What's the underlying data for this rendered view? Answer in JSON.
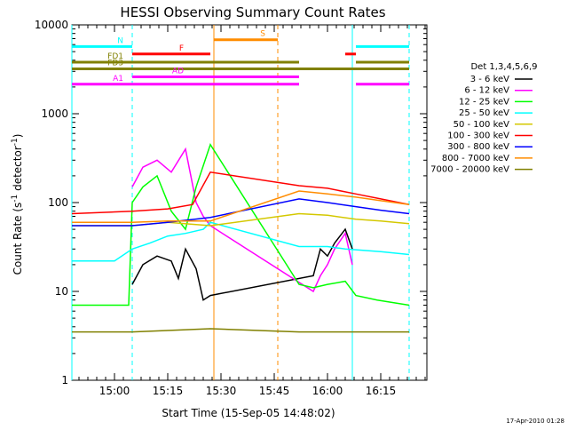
{
  "chart_data": {
    "type": "line",
    "title": "HESSI Observing Summary Count Rates",
    "xlabel": "Start Time (15-Sep-05 14:48:02)",
    "ylabel": "Count Rate (s",
    "ylabel_sup": "-1",
    "ylabel_tail": " detector",
    "ylabel_sup2": "-1",
    "ylabel_close": ")",
    "yscale": "log",
    "xlim": [
      "14:48",
      "16:28"
    ],
    "ylim": [
      1,
      10000
    ],
    "x_ticks": [
      "15:00",
      "15:15",
      "15:30",
      "15:45",
      "16:00",
      "16:15"
    ],
    "y_ticks": [
      "1",
      "10",
      "100",
      "1000",
      "10000"
    ],
    "grid": false,
    "legend_position": "right",
    "legend_title": "Det 1,3,4,5,6,9",
    "timestamp": "17-Apr-2010 01:28",
    "series": [
      {
        "name": "3 - 6 keV",
        "color": "#000000",
        "x": [
          "15:05",
          "15:08",
          "15:12",
          "15:16",
          "15:18",
          "15:20",
          "15:23",
          "15:25",
          "15:27",
          "15:56",
          "15:58",
          "16:00",
          "16:02",
          "16:05",
          "16:07"
        ],
        "y": [
          12,
          20,
          25,
          22,
          14,
          30,
          18,
          8,
          9,
          15,
          30,
          25,
          35,
          50,
          30
        ]
      },
      {
        "name": "6 - 12 keV",
        "color": "#ff00ff",
        "x": [
          "15:05",
          "15:08",
          "15:12",
          "15:16",
          "15:20",
          "15:23",
          "15:25",
          "15:27",
          "15:56",
          "15:58",
          "16:00",
          "16:02",
          "16:05",
          "16:07"
        ],
        "y": [
          150,
          250,
          300,
          220,
          400,
          100,
          70,
          55,
          10,
          15,
          20,
          30,
          45,
          20
        ]
      },
      {
        "name": "12 - 25 keV",
        "color": "#00ff00",
        "x": [
          "14:48",
          "15:04",
          "15:05",
          "15:08",
          "15:12",
          "15:16",
          "15:20",
          "15:23",
          "15:27",
          "15:52",
          "15:56",
          "16:00",
          "16:05",
          "16:08",
          "16:14",
          "16:23"
        ],
        "y": [
          7,
          7,
          100,
          150,
          200,
          80,
          50,
          150,
          450,
          12,
          11,
          12,
          13,
          9,
          8,
          7
        ]
      },
      {
        "name": "25 - 50 keV",
        "color": "#00ffff",
        "x": [
          "14:48",
          "15:00",
          "15:05",
          "15:10",
          "15:15",
          "15:20",
          "15:25",
          "15:27",
          "15:52",
          "16:00",
          "16:05",
          "16:15",
          "16:23"
        ],
        "y": [
          22,
          22,
          30,
          35,
          42,
          45,
          50,
          60,
          32,
          32,
          30,
          28,
          26
        ]
      },
      {
        "name": "50 - 100 keV",
        "color": "#d4c800",
        "x": [
          "14:48",
          "15:05",
          "15:15",
          "15:27",
          "15:52",
          "16:00",
          "16:08",
          "16:15",
          "16:23"
        ],
        "y": [
          55,
          55,
          60,
          55,
          75,
          72,
          65,
          62,
          58
        ]
      },
      {
        "name": "100 - 300 keV",
        "color": "#ff0000",
        "x": [
          "14:48",
          "15:05",
          "15:15",
          "15:22",
          "15:27",
          "15:52",
          "16:00",
          "16:08",
          "16:15",
          "16:23"
        ],
        "y": [
          75,
          80,
          85,
          95,
          220,
          155,
          145,
          125,
          110,
          95
        ]
      },
      {
        "name": "300 - 800 keV",
        "color": "#0000ff",
        "x": [
          "14:48",
          "15:05",
          "15:15",
          "15:27",
          "15:52",
          "16:00",
          "16:08",
          "16:15",
          "16:23"
        ],
        "y": [
          55,
          55,
          60,
          68,
          110,
          100,
          90,
          82,
          75
        ]
      },
      {
        "name": "800 - 7000 keV",
        "color": "#ff8c00",
        "x": [
          "14:48",
          "15:05",
          "15:15",
          "15:27",
          "15:52",
          "16:00",
          "16:08",
          "16:15",
          "16:23"
        ],
        "y": [
          60,
          60,
          62,
          62,
          135,
          125,
          115,
          105,
          95
        ]
      },
      {
        "name": "7000 - 20000 keV",
        "color": "#808000",
        "x": [
          "14:48",
          "15:05",
          "15:27",
          "15:52",
          "16:08",
          "16:23"
        ],
        "y": [
          3.5,
          3.5,
          3.8,
          3.5,
          3.5,
          3.5
        ]
      }
    ],
    "state_bars": [
      {
        "label": "N",
        "color": "#00ffff",
        "segments": [
          [
            "14:48",
            "15:05"
          ],
          [
            "16:08",
            "16:23"
          ]
        ],
        "level": 5700
      },
      {
        "label": "S",
        "color": "#ff8c00",
        "segments": [
          [
            "15:28",
            "15:46"
          ]
        ],
        "level": 6800
      },
      {
        "label": "F",
        "color": "#ff0000",
        "segments": [
          [
            "15:05",
            "15:27"
          ],
          [
            "16:05",
            "16:08"
          ]
        ],
        "level": 4700
      },
      {
        "label": "FD1",
        "color": "#808000",
        "segments": [
          [
            "14:48",
            "15:52"
          ],
          [
            "16:08",
            "16:23"
          ]
        ],
        "level": 3800
      },
      {
        "label": "FD3",
        "color": "#808000",
        "segments": [
          [
            "14:48",
            "16:23"
          ]
        ],
        "level": 3200
      },
      {
        "label": "AD",
        "color": "#ff00ff",
        "segments": [
          [
            "15:05",
            "15:52"
          ]
        ],
        "level": 2600
      },
      {
        "label": "A1",
        "color": "#ff00ff",
        "segments": [
          [
            "14:48",
            "15:52"
          ],
          [
            "16:08",
            "16:23"
          ]
        ],
        "level": 2150
      }
    ],
    "vertical_markers": [
      {
        "x": "14:48",
        "color": "#00ffff",
        "style": "solid"
      },
      {
        "x": "15:05",
        "color": "#00ffff",
        "style": "dashed"
      },
      {
        "x": "15:28",
        "color": "#ff8c00",
        "style": "solid"
      },
      {
        "x": "15:46",
        "color": "#ff8c00",
        "style": "dashed"
      },
      {
        "x": "16:07",
        "color": "#00ffff",
        "style": "solid"
      },
      {
        "x": "16:23",
        "color": "#00ffff",
        "style": "dashed"
      }
    ]
  }
}
